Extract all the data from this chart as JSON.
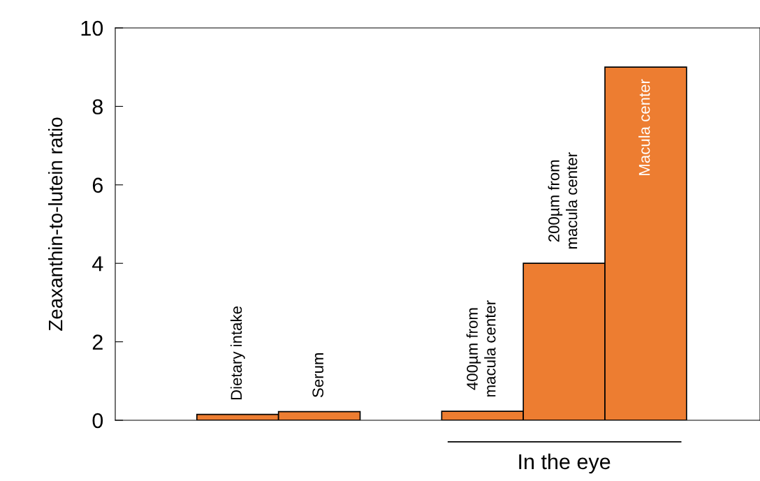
{
  "chart_data": {
    "type": "bar",
    "ylabel": "Zeaxanthin-to-lutein ratio",
    "categories": [
      "Dietary intake",
      "Serum",
      null,
      "400µm from\nmacula center",
      "200µm from\nmacula center",
      "Macula center"
    ],
    "values": [
      0.15,
      0.22,
      null,
      0.23,
      4.0,
      9.0
    ],
    "color": "#ed7d31",
    "ylim": [
      0,
      10
    ],
    "yticks": [
      0,
      2,
      4,
      6,
      8,
      10
    ],
    "annotations": [
      "In the eye"
    ]
  }
}
